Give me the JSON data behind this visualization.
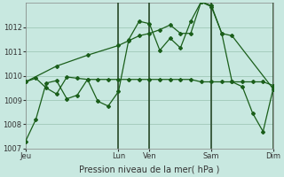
{
  "background_color": "#c8e8e0",
  "grid_color": "#a0c8b8",
  "line_color": "#1a5e1a",
  "xlabel": "Pression niveau de la mer( hPa )",
  "ylim": [
    1007,
    1013
  ],
  "yticks": [
    1007,
    1008,
    1009,
    1010,
    1011,
    1012
  ],
  "xtick_labels": [
    "Jeu",
    "Lun",
    "Ven",
    "Sam",
    "Dim"
  ],
  "xtick_positions": [
    0,
    9,
    12,
    18,
    24
  ],
  "vlines": [
    9,
    12,
    18,
    24
  ],
  "s1_x": [
    0,
    1,
    2,
    3,
    4,
    5,
    6,
    7,
    8,
    9,
    10,
    11,
    12,
    13,
    14,
    15,
    16,
    17,
    18,
    19,
    20,
    21,
    22,
    23,
    24
  ],
  "s1_y": [
    1007.3,
    1008.2,
    1009.7,
    1009.8,
    1009.05,
    1009.2,
    1009.85,
    1008.95,
    1008.75,
    1009.35,
    1011.5,
    1012.25,
    1012.15,
    1011.05,
    1011.55,
    1011.15,
    1012.25,
    1013.05,
    1012.9,
    1011.75,
    1009.75,
    1009.55,
    1008.45,
    1007.7,
    1009.5
  ],
  "s2_x": [
    0,
    1,
    2,
    3,
    4,
    5,
    6,
    7,
    8,
    9,
    10,
    11,
    12,
    13,
    14,
    15,
    16,
    17,
    18,
    19,
    20,
    21,
    22,
    23,
    24
  ],
  "s2_y": [
    1009.75,
    1009.9,
    1009.5,
    1009.25,
    1009.95,
    1009.9,
    1009.85,
    1009.85,
    1009.85,
    1009.85,
    1009.85,
    1009.85,
    1009.85,
    1009.85,
    1009.85,
    1009.85,
    1009.85,
    1009.75,
    1009.75,
    1009.75,
    1009.75,
    1009.75,
    1009.75,
    1009.75,
    1009.6
  ],
  "s3_x": [
    0,
    3,
    6,
    9,
    10,
    11,
    12,
    13,
    14,
    15,
    16,
    17,
    18,
    19,
    20,
    24
  ],
  "s3_y": [
    1009.75,
    1010.4,
    1010.85,
    1011.25,
    1011.45,
    1011.65,
    1011.75,
    1011.9,
    1012.1,
    1011.75,
    1011.75,
    1013.05,
    1012.85,
    1011.75,
    1011.65,
    1009.45
  ]
}
